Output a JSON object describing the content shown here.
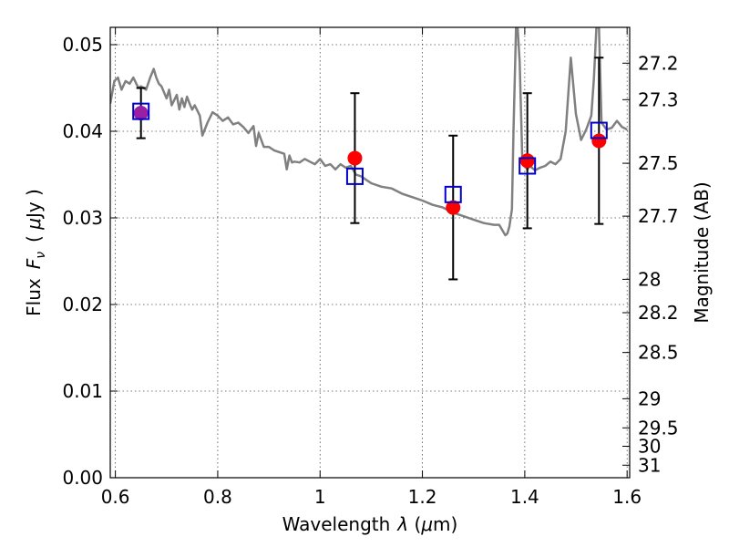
{
  "chart_data": {
    "type": "scatter",
    "xlabel_prefix": "Wavelength",
    "xlabel_symbol": "λ",
    "xlabel_unit_open": " (",
    "xlabel_unit_mu": "μ",
    "xlabel_unit_rest": "m)",
    "ylabel_prefix": "Flux",
    "ylabel_symbol": "F",
    "ylabel_subscript": "ν",
    "ylabel_unit_open": "( ",
    "ylabel_unit_mu": "μ",
    "ylabel_unit_rest": "Jy )",
    "y2label": "Magnitude (AB)",
    "xlim": [
      0.59,
      1.605
    ],
    "ylim": [
      0.0,
      0.052
    ],
    "grid": true,
    "x_ticks": [
      0.6,
      0.8,
      1.0,
      1.2,
      1.4,
      1.6
    ],
    "x_tick_labels": [
      "0.6",
      "0.8",
      "1",
      "1.2",
      "1.4",
      "1.6"
    ],
    "y_ticks": [
      0.0,
      0.01,
      0.02,
      0.03,
      0.04,
      0.05
    ],
    "y_tick_labels": [
      "0.00",
      "0.01",
      "0.02",
      "0.03",
      "0.04",
      "0.05"
    ],
    "y2_ticks": [
      27.2,
      27.3,
      27.5,
      27.7,
      28,
      28.2,
      28.5,
      29,
      29.5,
      30,
      31
    ],
    "y2_tick_labels": [
      "27.2",
      "27.3",
      "27.5",
      "27.7",
      "28",
      "28.2",
      "28.5",
      "29",
      "29.5",
      "30",
      "31"
    ],
    "colors": {
      "sed": "#808080",
      "observed": "#ff0000",
      "model": "#0000cc",
      "errorbar": "#000000",
      "overlap": "#9b1fa3"
    },
    "series": [
      {
        "type": "line",
        "x": [
          0.59,
          0.598,
          0.605,
          0.612,
          0.62,
          0.628,
          0.635,
          0.64,
          0.645,
          0.65,
          0.66,
          0.668,
          0.675,
          0.68,
          0.685,
          0.69,
          0.695,
          0.7,
          0.705,
          0.71,
          0.715,
          0.72,
          0.725,
          0.73,
          0.735,
          0.74,
          0.745,
          0.75,
          0.755,
          0.76,
          0.765,
          0.77,
          0.78,
          0.79,
          0.8,
          0.81,
          0.82,
          0.83,
          0.84,
          0.85,
          0.86,
          0.87,
          0.875,
          0.88,
          0.885,
          0.89,
          0.9,
          0.91,
          0.92,
          0.93,
          0.935,
          0.94,
          0.945,
          0.95,
          0.96,
          0.97,
          0.98,
          0.99,
          1.0,
          1.01,
          1.02,
          1.03,
          1.04,
          1.05,
          1.06,
          1.07,
          1.08,
          1.09,
          1.1,
          1.12,
          1.14,
          1.16,
          1.18,
          1.2,
          1.22,
          1.24,
          1.26,
          1.28,
          1.3,
          1.32,
          1.34,
          1.35,
          1.36,
          1.362,
          1.366,
          1.37,
          1.375,
          1.378,
          1.383,
          1.386,
          1.39,
          1.395,
          1.4,
          1.405,
          1.41,
          1.42,
          1.43,
          1.44,
          1.45,
          1.46,
          1.47,
          1.48,
          1.49,
          1.5,
          1.51,
          1.52,
          1.53,
          1.535,
          1.54,
          1.545,
          1.55,
          1.56,
          1.57,
          1.58,
          1.59,
          1.6
        ],
        "y": [
          0.0432,
          0.0458,
          0.0462,
          0.0448,
          0.0458,
          0.0455,
          0.0462,
          0.0456,
          0.045,
          0.0452,
          0.0448,
          0.0462,
          0.0472,
          0.0462,
          0.0455,
          0.0452,
          0.0445,
          0.0438,
          0.0448,
          0.043,
          0.0436,
          0.0442,
          0.0425,
          0.0438,
          0.0428,
          0.044,
          0.0432,
          0.0425,
          0.043,
          0.0424,
          0.0418,
          0.0395,
          0.041,
          0.0422,
          0.0418,
          0.0412,
          0.0416,
          0.0408,
          0.041,
          0.0405,
          0.0398,
          0.0406,
          0.0383,
          0.0398,
          0.039,
          0.0382,
          0.0382,
          0.0378,
          0.0376,
          0.0374,
          0.0356,
          0.0372,
          0.0364,
          0.0365,
          0.0364,
          0.0368,
          0.0365,
          0.0362,
          0.0368,
          0.036,
          0.0362,
          0.0356,
          0.0362,
          0.0358,
          0.036,
          0.035,
          0.0348,
          0.0344,
          0.034,
          0.0336,
          0.0334,
          0.0328,
          0.0324,
          0.032,
          0.0315,
          0.0312,
          0.0306,
          0.0302,
          0.0298,
          0.0294,
          0.0292,
          0.0292,
          0.0282,
          0.028,
          0.0282,
          0.029,
          0.031,
          0.04,
          0.052,
          0.052,
          0.048,
          0.037,
          0.036,
          0.0356,
          0.036,
          0.0355,
          0.0358,
          0.036,
          0.0365,
          0.0362,
          0.0368,
          0.04,
          0.0485,
          0.042,
          0.039,
          0.0402,
          0.0418,
          0.046,
          0.052,
          0.052,
          0.041,
          0.0402,
          0.0404,
          0.0412,
          0.0405,
          0.0402
        ]
      },
      {
        "type": "errorbar",
        "x": [
          0.65,
          1.068,
          1.26,
          1.405,
          1.545
        ],
        "y": [
          0.0421,
          0.0369,
          0.0312,
          0.0366,
          0.0389
        ],
        "yerr": [
          0.0029,
          0.0075,
          0.0083,
          0.0078,
          0.0096
        ]
      },
      {
        "type": "markers",
        "marker": "square",
        "x": [
          0.65,
          1.068,
          1.26,
          1.405,
          1.545
        ],
        "y": [
          0.0423,
          0.0348,
          0.0327,
          0.036,
          0.0401
        ]
      }
    ]
  }
}
